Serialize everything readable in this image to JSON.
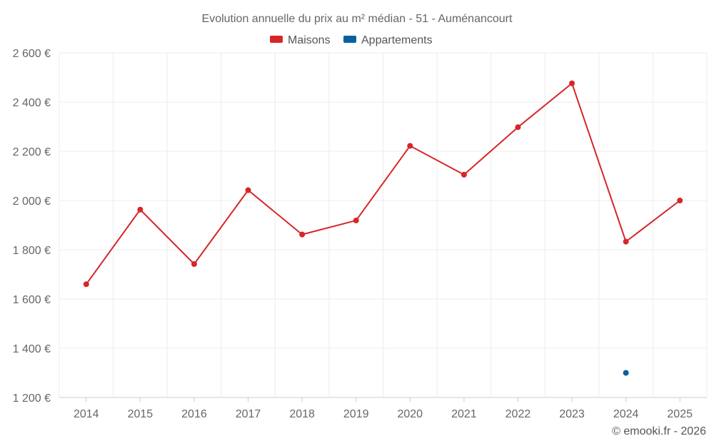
{
  "chart_data": {
    "type": "line",
    "title": "Evolution annuelle du prix au m² médian - 51 - Auménancourt",
    "categories": [
      "2014",
      "2015",
      "2016",
      "2017",
      "2018",
      "2019",
      "2020",
      "2021",
      "2022",
      "2023",
      "2024",
      "2025"
    ],
    "y_ticks": [
      "1 200 €",
      "1 400 €",
      "1 600 €",
      "1 800 €",
      "2 000 €",
      "2 200 €",
      "2 400 €",
      "2 600 €"
    ],
    "ylim": [
      1200,
      2600
    ],
    "xlabel": "",
    "ylabel": "",
    "grid": true,
    "legend_position": "top-center",
    "series": [
      {
        "name": "Maisons",
        "color": "#d62728",
        "values": [
          1660,
          1963,
          1742,
          2042,
          1862,
          1919,
          2222,
          2105,
          2298,
          2476,
          1833,
          2000
        ]
      },
      {
        "name": "Appartements",
        "color": "#08619e",
        "values": [
          null,
          null,
          null,
          null,
          null,
          null,
          null,
          null,
          null,
          null,
          1300,
          null
        ]
      }
    ]
  },
  "credit": "© emooki.fr - 2026"
}
